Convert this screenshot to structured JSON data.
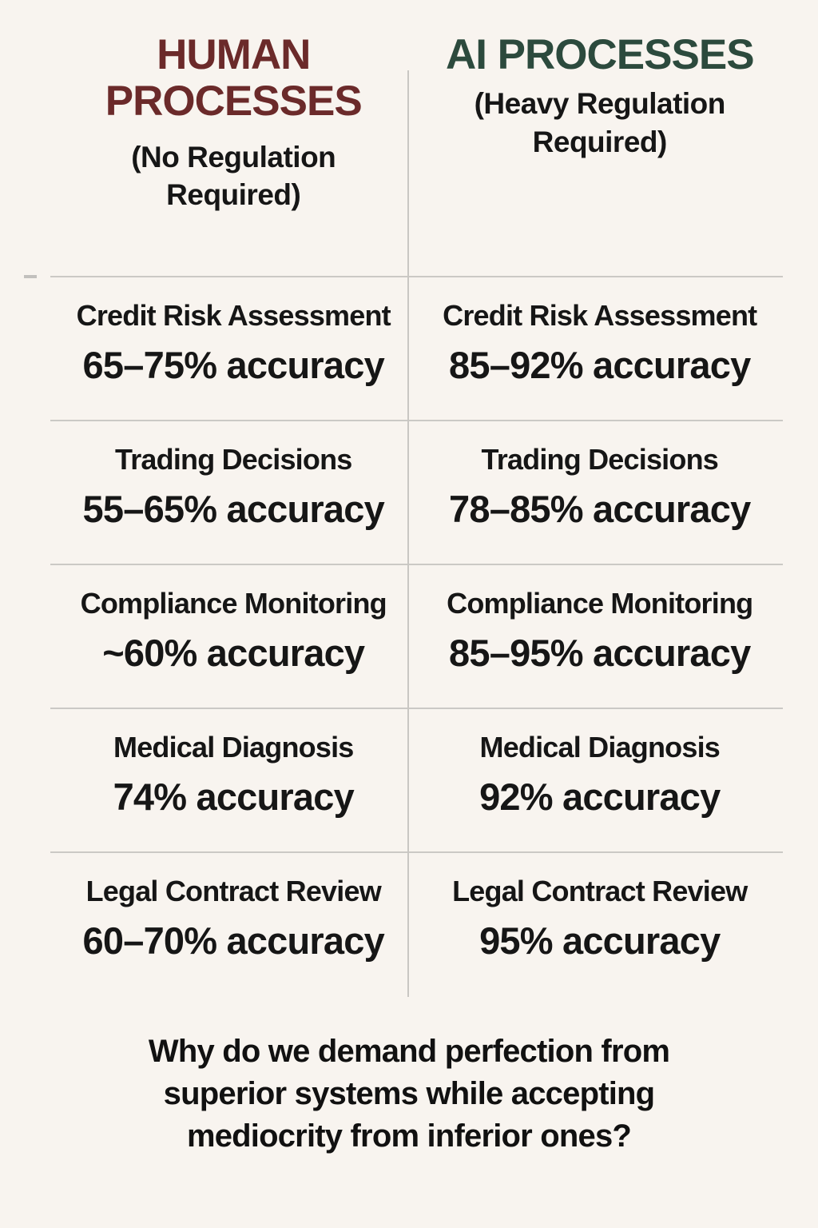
{
  "page": {
    "background_color": "#f8f4ef",
    "divider_color": "#c9c7c3",
    "human_accent_color": "#6b2a2a",
    "ai_accent_color": "#2c4a3d",
    "text_color": "#161616"
  },
  "columns": [
    {
      "title": "HUMAN PROCESSES",
      "subtitle": "(No Regulation Required)"
    },
    {
      "title": "AI PROCESSES",
      "subtitle": "(Heavy Regulation Required)"
    }
  ],
  "rows": [
    {
      "label": "Credit Risk Assessment",
      "human_value": "65–75% accuracy",
      "ai_value": "85–92% accuracy"
    },
    {
      "label": "Trading Decisions",
      "human_value": "55–65% accuracy",
      "ai_value": "78–85% accuracy"
    },
    {
      "label": "Compliance Monitoring",
      "human_value": "~60% accuracy",
      "ai_value": "85–95% accuracy"
    },
    {
      "label": "Medical Diagnosis",
      "human_value": "74% accuracy",
      "ai_value": "92% accuracy"
    },
    {
      "label": "Legal Contract Review",
      "human_value": "60–70% accuracy",
      "ai_value": "95% accuracy"
    }
  ],
  "footer": {
    "question": "Why do we demand perfection from superior systems while accepting mediocrity from inferior ones?"
  },
  "chart_data": {
    "type": "table",
    "title": "Human Processes vs AI Processes — accuracy comparison",
    "columns": [
      "HUMAN PROCESSES (No Regulation Required)",
      "AI PROCESSES (Heavy Regulation Required)"
    ],
    "categories": [
      "Credit Risk Assessment",
      "Trading Decisions",
      "Compliance Monitoring",
      "Medical Diagnosis",
      "Legal Contract Review"
    ],
    "series": [
      {
        "name": "Human Processes accuracy",
        "values": [
          "65–75%",
          "55–65%",
          "~60%",
          "74%",
          "60–70%"
        ]
      },
      {
        "name": "AI Processes accuracy",
        "values": [
          "85–92%",
          "78–85%",
          "85–95%",
          "92%",
          "95%"
        ]
      }
    ],
    "annotation": "Why do we demand perfection from superior systems while accepting mediocrity from inferior ones?",
    "layout": {
      "grid": "light-gray row dividers with central vertical divider",
      "legend_position": "none"
    }
  }
}
